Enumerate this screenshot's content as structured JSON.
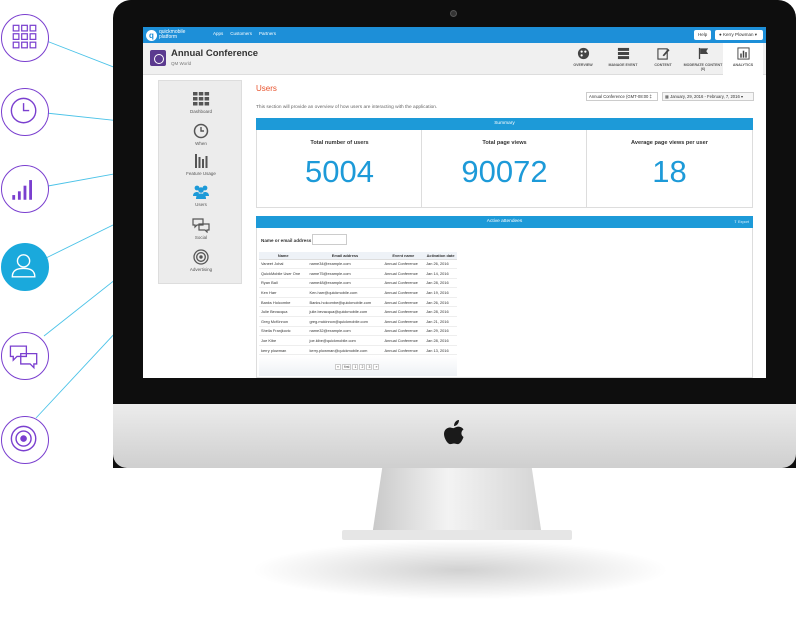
{
  "features": [
    {
      "name": "dashboard",
      "icon": "grid-icon"
    },
    {
      "name": "when",
      "icon": "clock-icon"
    },
    {
      "name": "feature-usage",
      "icon": "bar-chart-icon"
    },
    {
      "name": "users",
      "icon": "user-icon"
    },
    {
      "name": "social",
      "icon": "chat-bubbles-icon"
    },
    {
      "name": "advertising",
      "icon": "target-icon"
    }
  ],
  "app": {
    "logo_text": "quickmobile platform",
    "nav": [
      "Apps",
      "Customers",
      "Partners"
    ],
    "help_label": "Help",
    "user_label": "Kerry Plowman"
  },
  "event": {
    "title": "Annual Conference",
    "subtitle": "QM World"
  },
  "header_tabs": [
    {
      "label": "OVERVIEW",
      "icon": "palette-icon"
    },
    {
      "label": "MANAGE EVENT",
      "icon": "server-icon"
    },
    {
      "label": "CONTENT",
      "icon": "edit-icon"
    },
    {
      "label": "MODERATE CONTENT (6)",
      "icon": "flag-icon"
    },
    {
      "label": "ANALYTICS",
      "icon": "bar-chart-icon"
    }
  ],
  "sidebar": {
    "items": [
      {
        "label": "Dashboard",
        "icon": "grid-icon"
      },
      {
        "label": "When",
        "icon": "clock-icon"
      },
      {
        "label": "Feature Usage",
        "icon": "bar-chart-icon"
      },
      {
        "label": "Users",
        "icon": "users-icon"
      },
      {
        "label": "Social",
        "icon": "chat-bubbles-icon"
      },
      {
        "label": "Advertising",
        "icon": "target-icon"
      }
    ]
  },
  "page": {
    "title": "Users",
    "description": "This section will provide an overview of how users are interacting with the application.",
    "timezone": "Annual Conference (GMT-08:00 ‡",
    "date_range": "▦ January, 29, 2016 - February, 7, 2016 ▾"
  },
  "summary": {
    "heading": "Summary",
    "stats": [
      {
        "label": "Total number of users",
        "value": "5004"
      },
      {
        "label": "Total page views",
        "value": "90072"
      },
      {
        "label": "Average page views per user",
        "value": "18"
      }
    ]
  },
  "attendees": {
    "heading": "Active attendees",
    "export_label": "⇪ Export",
    "filter_label": "Name or email address",
    "columns": [
      "Name",
      "Email address",
      "Event name",
      "Activation date"
    ],
    "rows": [
      [
        "Vaneet Johal",
        "name34@example.com",
        "Annual Conference",
        "Jan 26, 2016"
      ],
      [
        "QuickMobile User One",
        "name75@example.com",
        "Annual Conference",
        "Jan 14, 2016"
      ],
      [
        "Ryan Ball",
        "name48@example.com",
        "Annual Conference",
        "Jan 28, 2016"
      ],
      [
        "Ken Harr",
        "Ken.harr@quickmobile.com",
        "Annual Conference",
        "Jan 19, 2016"
      ],
      [
        "Banks Holcombe",
        "Banks.holcombe@quickmobile.com",
        "Annual Conference",
        "Jan 26, 2016"
      ],
      [
        "Julie Bevacqua",
        "julie.bevacqua@quickmobile.com",
        "Annual Conference",
        "Jan 28, 2016"
      ],
      [
        "Greg McKinnon",
        "greg.mckinnon@quickmobile.com",
        "Annual Conference",
        "Jan 21, 2016"
      ],
      [
        "Sheila Franjkovic",
        "name32@example.com",
        "Annual Conference",
        "Jan 29, 2016"
      ],
      [
        "Joe Kibe",
        "joe.kibe@quickmobile.com",
        "Annual Conference",
        "Jan 28, 2016"
      ],
      [
        "kerry plowman",
        "kerry.plowman@quickmobile.com",
        "Annual Conference",
        "Jan 13, 2016"
      ]
    ],
    "pager": [
      "«",
      "first",
      "1",
      "2",
      "3",
      "»"
    ]
  },
  "colors": {
    "accent": "#1d9ad8",
    "brand_purple": "#7a3fcf",
    "title_orange": "#e8522c"
  }
}
